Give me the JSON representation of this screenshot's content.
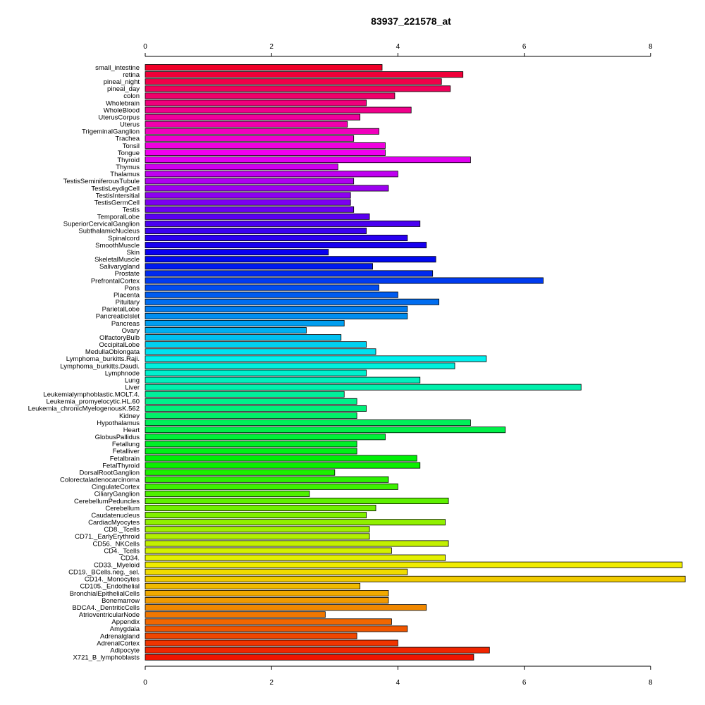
{
  "chart_data": {
    "type": "bar",
    "orientation": "horizontal",
    "title": "83937_221578_at",
    "xlabel": "",
    "ylabel": "",
    "xlim": [
      0,
      8.55
    ],
    "xticks": [
      0,
      2,
      4,
      6,
      8
    ],
    "grid": false,
    "categories": [
      "small_intestine",
      "retina",
      "pineal_night",
      "pineal_day",
      "colon",
      "Wholebrain",
      "WholeBlood",
      "UterusCorpus",
      "Uterus",
      "TrigeminalGanglion",
      "Trachea",
      "Tonsil",
      "Tongue",
      "Thyroid",
      "Thymus",
      "Thalamus",
      "TestisSeminiferousTubule",
      "TestisLeydigCell",
      "TestisIntersitial",
      "TestisGermCell",
      "Testis",
      "TemporalLobe",
      "SuperiorCervicalGanglion",
      "SubthalamicNucleus",
      "Spinalcord",
      "SmoothMuscle",
      "Skin",
      "SkeletalMuscle",
      "Salivarygland",
      "Prostate",
      "PrefrontalCortex",
      "Pons",
      "Placenta",
      "Pituitary",
      "ParietalLobe",
      "PancreaticIslet",
      "Pancreas",
      "Ovary",
      "OlfactoryBulb",
      "OccipitalLobe",
      "MedullaOblongata",
      "Lymphoma_burkitts.Raji.",
      "Lymphoma_burkitts.Daudi.",
      "Lymphnode",
      "Lung",
      "Liver",
      "Leukemialymphoblastic.MOLT.4.",
      "Leukemia_promyelocytic.HL.60",
      "Leukemia_chronicMyelogenousK.562",
      "Kidney",
      "Hypothalamus",
      "Heart",
      "GlobusPallidus",
      "Fetallung",
      "Fetalliver",
      "Fetalbrain",
      "FetalThyroid",
      "DorsalRootGanglion",
      "Colorectaladenocarcinoma",
      "CingulateCortex",
      "CiliaryGanglion",
      "CerebellumPeduncles",
      "Cerebellum",
      "Caudatenucleus",
      "CardiacMyocytes",
      "CD8._Tcells",
      "CD71._EarlyErythroid",
      "CD56._NKCells",
      "CD4._Tcells",
      "CD34.",
      "CD33._Myeloid",
      "CD19._BCells.neg._sel.",
      "CD14._Monocytes",
      "CD105._Endothelial",
      "BronchialEpithelialCells",
      "Bonemarrow",
      "BDCA4._DentriticCells",
      "AtrioventricularNode",
      "Appendix",
      "Amygdala",
      "Adrenalgland",
      "AdrenalCortex",
      "Adipocyte",
      "X721_B_lymphoblasts"
    ],
    "values": [
      3.75,
      5.03,
      4.69,
      4.83,
      3.95,
      3.5,
      4.21,
      3.4,
      3.2,
      3.7,
      3.3,
      3.8,
      3.8,
      5.15,
      3.05,
      4.0,
      3.3,
      3.85,
      3.25,
      3.25,
      3.3,
      3.55,
      4.35,
      3.5,
      4.15,
      4.45,
      2.9,
      4.6,
      3.6,
      4.55,
      6.3,
      3.7,
      4.0,
      4.65,
      4.15,
      4.15,
      3.15,
      2.55,
      3.1,
      3.5,
      3.65,
      5.4,
      4.9,
      3.5,
      4.35,
      6.9,
      3.15,
      3.35,
      3.5,
      3.35,
      5.15,
      5.7,
      3.8,
      3.35,
      3.35,
      4.3,
      4.35,
      3.0,
      3.85,
      4.0,
      2.6,
      4.8,
      3.65,
      3.5,
      4.75,
      3.55,
      3.55,
      4.8,
      3.9,
      4.75,
      8.5,
      4.15,
      8.55,
      3.4,
      3.85,
      3.85,
      4.45,
      2.85,
      3.9,
      4.15,
      3.35,
      4.0,
      5.45,
      5.2
    ]
  }
}
